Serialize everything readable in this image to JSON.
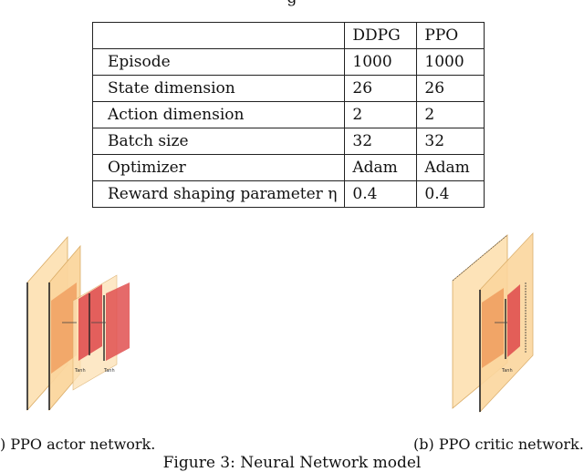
{
  "table_top_text": "g",
  "table": {
    "header": [
      "",
      "DDPG",
      "PPO"
    ],
    "rows": [
      [
        "Episode",
        "1000",
        "1000"
      ],
      [
        "State dimension",
        "26",
        "26"
      ],
      [
        "Action dimension",
        "2",
        "2"
      ],
      [
        "Batch size",
        "32",
        "32"
      ],
      [
        "Optimizer",
        "Adam",
        "Adam"
      ],
      [
        "Reward shaping parameter η",
        "0.4",
        "0.4"
      ]
    ]
  },
  "diagram_labels": {
    "actor_tanh_1": "Tanh",
    "actor_tanh_2": "Tanh",
    "critic_tanh": "Tanh"
  },
  "captions": {
    "actor": ")  PPO actor network.",
    "critic": "(b)  PPO critic network.",
    "figure": "Figure 3:  Neural Network model"
  },
  "colors": {
    "layer_light": "#fde3b8",
    "layer_mid": "#f0a060",
    "layer_red": "#e05050"
  }
}
